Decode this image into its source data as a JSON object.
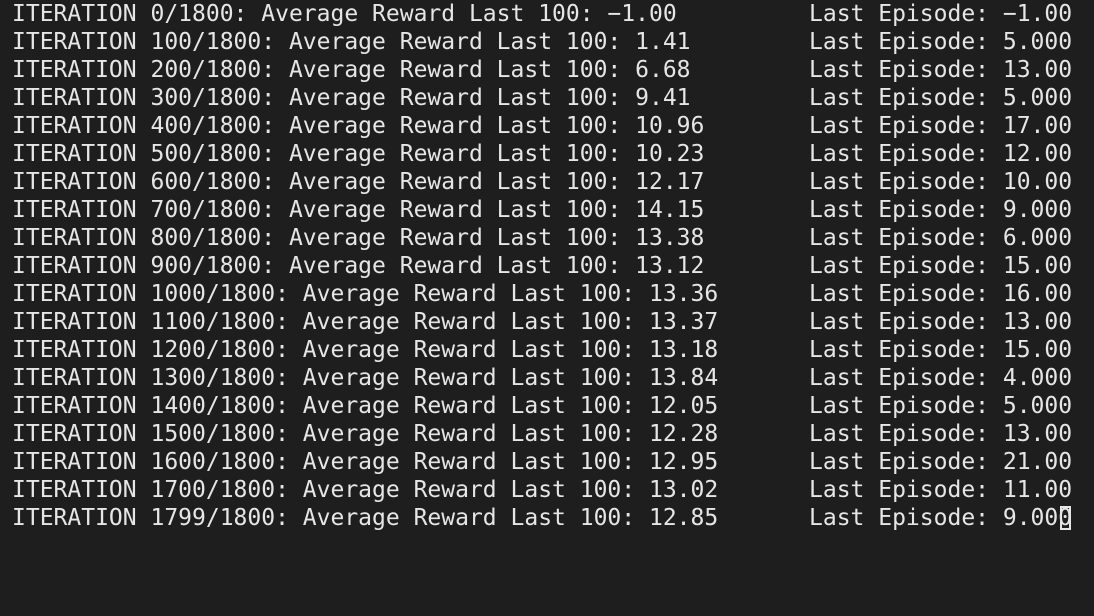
{
  "terminal": {
    "lines": [
      {
        "left": "ITERATION 0/1800: Average Reward Last 100: −1.00",
        "right": "Last Episode: −1.00"
      },
      {
        "left": "ITERATION 100/1800: Average Reward Last 100: 1.41",
        "right": "Last Episode: 5.000"
      },
      {
        "left": "ITERATION 200/1800: Average Reward Last 100: 6.68",
        "right": "Last Episode: 13.00"
      },
      {
        "left": "ITERATION 300/1800: Average Reward Last 100: 9.41",
        "right": "Last Episode: 5.000"
      },
      {
        "left": "ITERATION 400/1800: Average Reward Last 100: 10.96",
        "right": "Last Episode: 17.00"
      },
      {
        "left": "ITERATION 500/1800: Average Reward Last 100: 10.23",
        "right": "Last Episode: 12.00"
      },
      {
        "left": "ITERATION 600/1800: Average Reward Last 100: 12.17",
        "right": "Last Episode: 10.00"
      },
      {
        "left": "ITERATION 700/1800: Average Reward Last 100: 14.15",
        "right": "Last Episode: 9.000"
      },
      {
        "left": "ITERATION 800/1800: Average Reward Last 100: 13.38",
        "right": "Last Episode: 6.000"
      },
      {
        "left": "ITERATION 900/1800: Average Reward Last 100: 13.12",
        "right": "Last Episode: 15.00"
      },
      {
        "left": "ITERATION 1000/1800: Average Reward Last 100: 13.36",
        "right": "Last Episode: 16.00"
      },
      {
        "left": "ITERATION 1100/1800: Average Reward Last 100: 13.37",
        "right": "Last Episode: 13.00"
      },
      {
        "left": "ITERATION 1200/1800: Average Reward Last 100: 13.18",
        "right": "Last Episode: 15.00"
      },
      {
        "left": "ITERATION 1300/1800: Average Reward Last 100: 13.84",
        "right": "Last Episode: 4.000"
      },
      {
        "left": "ITERATION 1400/1800: Average Reward Last 100: 12.05",
        "right": "Last Episode: 5.000"
      },
      {
        "left": "ITERATION 1500/1800: Average Reward Last 100: 12.28",
        "right": "Last Episode: 13.00"
      },
      {
        "left": "ITERATION 1600/1800: Average Reward Last 100: 12.95",
        "right": "Last Episode: 21.00"
      },
      {
        "left": "ITERATION 1700/1800: Average Reward Last 100: 13.02",
        "right": "Last Episode: 11.00"
      },
      {
        "left": "ITERATION 1799/1800: Average Reward Last 100: 12.85",
        "right": "Last Episode: 9.000"
      }
    ],
    "colors": {
      "background": "#1e1e1e",
      "foreground": "#e6e6e6"
    },
    "cursor_icon": "block-cursor-outline"
  }
}
